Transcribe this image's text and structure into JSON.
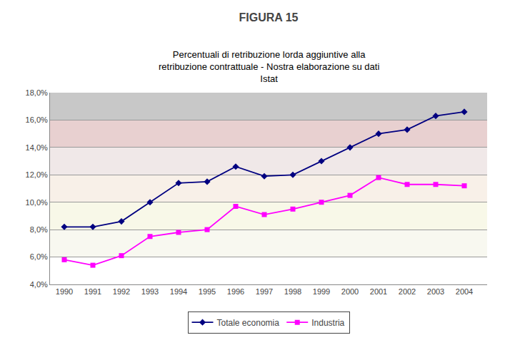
{
  "chart_data": {
    "type": "line",
    "title": "FIGURA 15",
    "subtitle": "Percentuali di retribuzione lorda aggiuntive alla\nretribuzione contrattuale - Nostra elaborazione su dati\nIstat",
    "x": [
      1990,
      1991,
      1992,
      1993,
      1994,
      1995,
      1996,
      1997,
      1998,
      1999,
      2000,
      2001,
      2002,
      2003,
      2004
    ],
    "series": [
      {
        "name": "Totale economia",
        "color": "#000080",
        "marker": "diamond",
        "line_style": "solid",
        "values": [
          0.082,
          0.082,
          0.086,
          0.1,
          0.114,
          0.115,
          0.126,
          0.119,
          0.12,
          0.13,
          0.14,
          0.15,
          0.153,
          0.163,
          0.166
        ]
      },
      {
        "name": "Industria",
        "color": "#FF00FF",
        "marker": "square",
        "line_style": "solid",
        "values": [
          0.058,
          0.054,
          0.061,
          0.075,
          0.078,
          0.08,
          0.097,
          0.091,
          0.095,
          0.1,
          0.105,
          0.118,
          0.113,
          0.113,
          0.112
        ]
      }
    ],
    "xlim": [
      1989.5,
      2004.8
    ],
    "xticks": [
      1990,
      1991,
      1992,
      1993,
      1994,
      1995,
      1996,
      1997,
      1998,
      1999,
      2000,
      2001,
      2002,
      2003,
      2004
    ],
    "ylim": [
      0.04,
      0.18
    ],
    "yticks": [
      {
        "value": 0.04,
        "label": "4,0%"
      },
      {
        "value": 0.06,
        "label": "6,0%"
      },
      {
        "value": 0.08,
        "label": "8,0%"
      },
      {
        "value": 0.1,
        "label": "10,0%"
      },
      {
        "value": 0.12,
        "label": "12,0%"
      },
      {
        "value": 0.14,
        "label": "14,0%"
      },
      {
        "value": 0.16,
        "label": "16,0%"
      },
      {
        "value": 0.18,
        "label": "18,0%"
      }
    ],
    "grid": true,
    "legend": "bottom",
    "bands": [
      {
        "ymin": 0.16,
        "ymax": 0.18,
        "color": "#c8c8c8"
      },
      {
        "ymin": 0.14,
        "ymax": 0.16,
        "color": "#e8d0d0"
      },
      {
        "ymin": 0.12,
        "ymax": 0.14,
        "color": "#f0e8e8"
      },
      {
        "ymin": 0.1,
        "ymax": 0.12,
        "color": "#f8f0e8"
      },
      {
        "ymin": 0.08,
        "ymax": 0.1,
        "color": "#f8f8e8"
      },
      {
        "ymin": 0.06,
        "ymax": 0.08,
        "color": "#f8f8f0"
      },
      {
        "ymin": 0.04,
        "ymax": 0.06,
        "color": "#ffffff"
      }
    ]
  }
}
